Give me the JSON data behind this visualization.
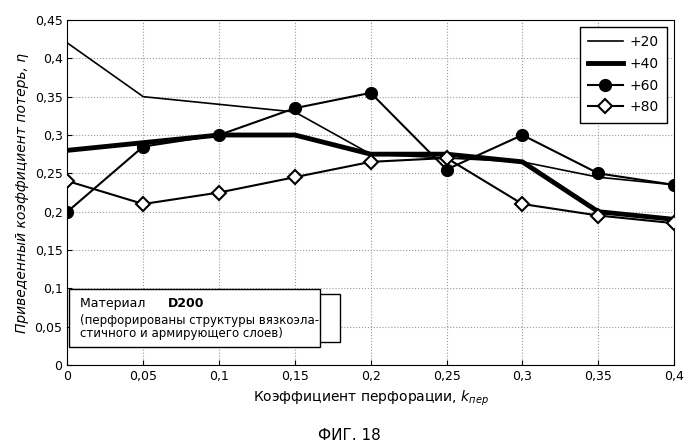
{
  "x": [
    0,
    0.05,
    0.1,
    0.15,
    0.2,
    0.25,
    0.3,
    0.35,
    0.4
  ],
  "series": {
    "+20": [
      0.42,
      0.35,
      0.34,
      0.33,
      0.275,
      0.27,
      0.265,
      0.245,
      0.235
    ],
    "+40": [
      0.28,
      0.29,
      0.3,
      0.3,
      0.275,
      0.275,
      0.265,
      0.2,
      0.19
    ],
    "+60": [
      0.2,
      0.285,
      0.3,
      0.335,
      0.355,
      0.255,
      0.3,
      0.25,
      0.235
    ],
    "+80": [
      0.24,
      0.21,
      0.225,
      0.245,
      0.265,
      0.27,
      0.21,
      0.195,
      0.185
    ]
  },
  "line_styles": {
    "+20": {
      "linewidth": 1.2,
      "linestyle": "-",
      "marker": "None",
      "markersize": 0,
      "color": "#000000"
    },
    "+40": {
      "linewidth": 3.5,
      "linestyle": "-",
      "marker": "None",
      "markersize": 0,
      "color": "#000000"
    },
    "+60": {
      "linewidth": 1.5,
      "linestyle": "-",
      "marker": "o",
      "markersize": 8,
      "markerfacecolor": "#000000",
      "markeredgecolor": "#000000",
      "color": "#000000"
    },
    "+80": {
      "linewidth": 1.5,
      "linestyle": "-",
      "marker": "D",
      "markersize": 7,
      "markerfacecolor": "#ffffff",
      "markeredgecolor": "#000000",
      "color": "#000000"
    }
  },
  "xlabel_normal": "Коэффициент перфорации, ",
  "xlabel_k": "k",
  "xlabel_sub": "пер",
  "ylabel": "Приведенный коэффициент потерь, η",
  "title": "ФИГ. 18",
  "xlim": [
    0,
    0.4
  ],
  "ylim": [
    0,
    0.45
  ],
  "xticks": [
    0,
    0.05,
    0.1,
    0.15,
    0.2,
    0.25,
    0.3,
    0.35,
    0.4
  ],
  "yticks": [
    0,
    0.05,
    0.1,
    0.15,
    0.2,
    0.25,
    0.3,
    0.35,
    0.4,
    0.45
  ],
  "ann_normal": "Материал ",
  "ann_bold": "D200",
  "ann_line2": "(перфорированы структуры вязкоэла-",
  "ann_line3": "стичного и армирующего слоев)",
  "background_color": "#ffffff",
  "figsize": [
    6.99,
    4.45
  ],
  "dpi": 100
}
